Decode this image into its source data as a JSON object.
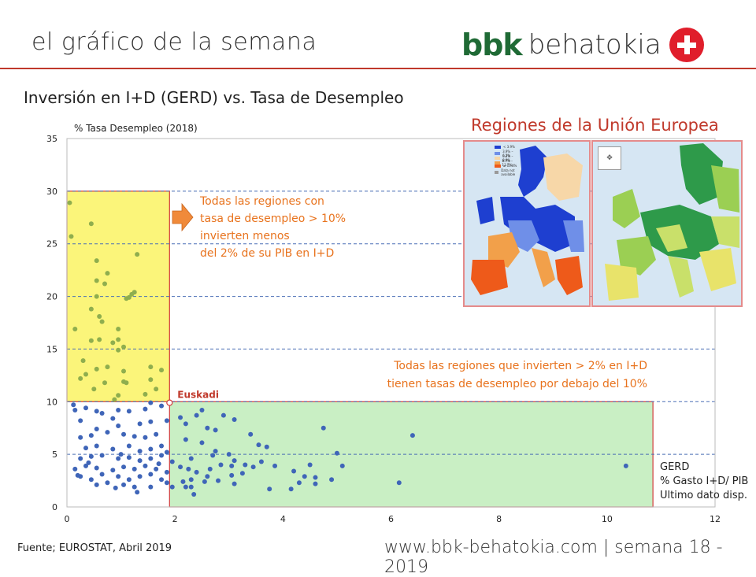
{
  "header": {
    "title": "el gráfico de la semana",
    "logo_bbk": "bbk",
    "logo_name": "behatokia"
  },
  "footer": {
    "source": "Fuente; EUROSTAT, Abril 2019",
    "url": "www.bbk-behatokia.com | semana 18 - 2019"
  },
  "map_panel": {
    "title": "Regiones de la Unión Europea",
    "legend": [
      {
        "label": "< 3.9%",
        "color": "#1e3fd0"
      },
      {
        "label": "3.9% – 6.2%",
        "color": "#6f8fe8"
      },
      {
        "label": "6.2% – 8.8%",
        "color": "#f7d7a8"
      },
      {
        "label": "8.7% – 13.7%",
        "color": "#f2a04a"
      },
      {
        "label": "≥ 13.8%",
        "color": "#ee5a1a"
      },
      {
        "label": "Data not available",
        "color": "#9a9a9a"
      }
    ],
    "nav_icon": "pan-arrows-icon"
  },
  "chart_data": {
    "type": "scatter",
    "title": "Inversión en I+D (GERD) vs. Tasa de Desempleo",
    "ylabel": "% Tasa Desempleo (2018)",
    "xlabel_lines": [
      "GERD",
      "% Gasto I+D/ PIB",
      "Ultimo dato disp."
    ],
    "xlim": [
      0,
      12
    ],
    "ylim": [
      0,
      35
    ],
    "x_ticks": [
      0,
      2,
      4,
      6,
      8,
      10,
      12
    ],
    "y_ticks": [
      0,
      5,
      10,
      15,
      20,
      25,
      30,
      35
    ],
    "grid": "horizontal dashed",
    "highlight": {
      "label": "Euskadi",
      "x": 1.9,
      "y": 9.9
    },
    "regions": [
      {
        "name": "high-unemployment-low-rd",
        "x": [
          0,
          1.9
        ],
        "y": [
          10,
          30
        ],
        "color": "#fbf57a"
      },
      {
        "name": "low-unemployment",
        "x": [
          1.9,
          10.85
        ],
        "y": [
          0,
          10
        ],
        "color": "#c9efc4"
      }
    ],
    "annotations": [
      {
        "lines": [
          "Todas las regiones con",
          "tasa de desempleo > 10%",
          "invierten menos",
          "del 2% de su PIB en I+D"
        ],
        "color": "#e8731e"
      },
      {
        "lines": [
          "Todas las regiones que invierten > 2% en I+D",
          "tienen tasas de desempleo por debajo del 10%"
        ],
        "color": "#e8731e"
      }
    ],
    "series": [
      {
        "color_high": "#8fae4e",
        "color_low": "#3f65b8",
        "points": [
          [
            0.05,
            28.9
          ],
          [
            0.08,
            25.7
          ],
          [
            0.15,
            16.9
          ],
          [
            0.45,
            26.9
          ],
          [
            0.55,
            23.4
          ],
          [
            0.75,
            22.2
          ],
          [
            0.55,
            21.5
          ],
          [
            0.7,
            21.2
          ],
          [
            0.55,
            20
          ],
          [
            0.45,
            18.8
          ],
          [
            0.6,
            18.1
          ],
          [
            0.65,
            17.6
          ],
          [
            1.3,
            24
          ],
          [
            1.2,
            20.2
          ],
          [
            1.25,
            20.4
          ],
          [
            1.15,
            19.9
          ],
          [
            1.1,
            19.8
          ],
          [
            0.95,
            16.9
          ],
          [
            0.6,
            15.9
          ],
          [
            0.85,
            15.6
          ],
          [
            0.95,
            15.9
          ],
          [
            0.45,
            15.8
          ],
          [
            1.05,
            15.2
          ],
          [
            0.95,
            14.9
          ],
          [
            0.3,
            13.9
          ],
          [
            0.25,
            12.2
          ],
          [
            0.35,
            12.6
          ],
          [
            0.55,
            13.1
          ],
          [
            0.75,
            13.3
          ],
          [
            0.7,
            11.8
          ],
          [
            0.5,
            11.2
          ],
          [
            0.95,
            10.6
          ],
          [
            1.05,
            11.9
          ],
          [
            1.1,
            11.8
          ],
          [
            1.05,
            12.9
          ],
          [
            1.55,
            13.3
          ],
          [
            1.75,
            13
          ],
          [
            1.55,
            12.1
          ],
          [
            1.45,
            10.7
          ],
          [
            1.65,
            11.2
          ],
          [
            0.88,
            10.2
          ],
          [
            0.12,
            9.7
          ],
          [
            0.15,
            9.2
          ],
          [
            0.35,
            9.4
          ],
          [
            0.55,
            9.1
          ],
          [
            0.65,
            8.9
          ],
          [
            0.95,
            9.2
          ],
          [
            1.15,
            9.1
          ],
          [
            1.45,
            9.3
          ],
          [
            1.55,
            9.9
          ],
          [
            1.75,
            9.6
          ],
          [
            0.85,
            8.4
          ],
          [
            0.25,
            8.2
          ],
          [
            0.55,
            7.4
          ],
          [
            0.95,
            7.7
          ],
          [
            1.35,
            7.9
          ],
          [
            1.55,
            8.1
          ],
          [
            1.85,
            8.2
          ],
          [
            0.25,
            6.6
          ],
          [
            0.45,
            6.8
          ],
          [
            0.75,
            7.1
          ],
          [
            1.05,
            6.9
          ],
          [
            1.25,
            6.7
          ],
          [
            1.45,
            6.6
          ],
          [
            1.65,
            6.9
          ],
          [
            0.35,
            5.6
          ],
          [
            0.55,
            5.8
          ],
          [
            0.85,
            5.5
          ],
          [
            1.15,
            5.8
          ],
          [
            1.35,
            5.3
          ],
          [
            1.55,
            5.5
          ],
          [
            1.75,
            5.8
          ],
          [
            1.85,
            5.2
          ],
          [
            0.25,
            4.6
          ],
          [
            0.45,
            4.8
          ],
          [
            0.65,
            4.9
          ],
          [
            0.95,
            4.6
          ],
          [
            1.15,
            4.7
          ],
          [
            1.35,
            4.4
          ],
          [
            1.55,
            4.6
          ],
          [
            1.75,
            4.9
          ],
          [
            1.95,
            4.3
          ],
          [
            0.15,
            3.6
          ],
          [
            0.35,
            3.9
          ],
          [
            0.55,
            3.7
          ],
          [
            0.85,
            3.5
          ],
          [
            1.05,
            3.8
          ],
          [
            1.25,
            3.6
          ],
          [
            1.45,
            3.9
          ],
          [
            1.65,
            3.6
          ],
          [
            1.85,
            3.3
          ],
          [
            0.25,
            2.9
          ],
          [
            0.45,
            2.6
          ],
          [
            0.65,
            3.1
          ],
          [
            0.95,
            2.9
          ],
          [
            1.15,
            2.6
          ],
          [
            1.35,
            2.9
          ],
          [
            1.55,
            3.1
          ],
          [
            1.75,
            2.6
          ],
          [
            0.55,
            2.1
          ],
          [
            0.75,
            2.3
          ],
          [
            1.05,
            2.1
          ],
          [
            1.25,
            1.9
          ],
          [
            1.3,
            1.4
          ],
          [
            1.55,
            1.9
          ],
          [
            1.85,
            2.3
          ],
          [
            0.9,
            1.8
          ],
          [
            1.95,
            1.9
          ],
          [
            0.2,
            3.0
          ],
          [
            1.7,
            4.1
          ],
          [
            0.4,
            4.2
          ],
          [
            1.0,
            5.0
          ],
          [
            2.1,
            8.5
          ],
          [
            2.2,
            7.9
          ],
          [
            2.5,
            9.2
          ],
          [
            2.4,
            8.7
          ],
          [
            2.6,
            7.5
          ],
          [
            2.75,
            7.3
          ],
          [
            2.9,
            8.7
          ],
          [
            3.1,
            8.3
          ],
          [
            2.2,
            6.4
          ],
          [
            2.5,
            6.1
          ],
          [
            2.75,
            5.3
          ],
          [
            2.3,
            4.6
          ],
          [
            2.7,
            4.9
          ],
          [
            3,
            5
          ],
          [
            3.1,
            4.4
          ],
          [
            3.4,
            6.9
          ],
          [
            3.55,
            5.9
          ],
          [
            3.7,
            5.7
          ],
          [
            2.1,
            3.8
          ],
          [
            2.25,
            3.6
          ],
          [
            2.4,
            3.3
          ],
          [
            2.6,
            2.9
          ],
          [
            2.85,
            4
          ],
          [
            3.05,
            3.9
          ],
          [
            3.25,
            3.2
          ],
          [
            3.05,
            3
          ],
          [
            2.15,
            2.4
          ],
          [
            2.3,
            2.6
          ],
          [
            2.55,
            2.4
          ],
          [
            2.8,
            2.5
          ],
          [
            3.1,
            2.2
          ],
          [
            2.2,
            1.9
          ],
          [
            2.3,
            1.9
          ],
          [
            2.35,
            1.2
          ],
          [
            3.3,
            4
          ],
          [
            4.5,
            4
          ],
          [
            3.85,
            3.9
          ],
          [
            4.2,
            3.4
          ],
          [
            4.4,
            2.9
          ],
          [
            4.6,
            2.8
          ],
          [
            4.75,
            7.5
          ],
          [
            5.0,
            5.1
          ],
          [
            5.1,
            3.9
          ],
          [
            4.9,
            2.6
          ],
          [
            4.3,
            2.3
          ],
          [
            3.75,
            1.7
          ],
          [
            4.15,
            1.7
          ],
          [
            6.4,
            6.8
          ],
          [
            6.15,
            2.3
          ],
          [
            10.35,
            3.9
          ],
          [
            3.6,
            4.3
          ],
          [
            2.65,
            3.6
          ],
          [
            4.6,
            2.2
          ],
          [
            3.45,
            3.8
          ]
        ]
      }
    ]
  }
}
